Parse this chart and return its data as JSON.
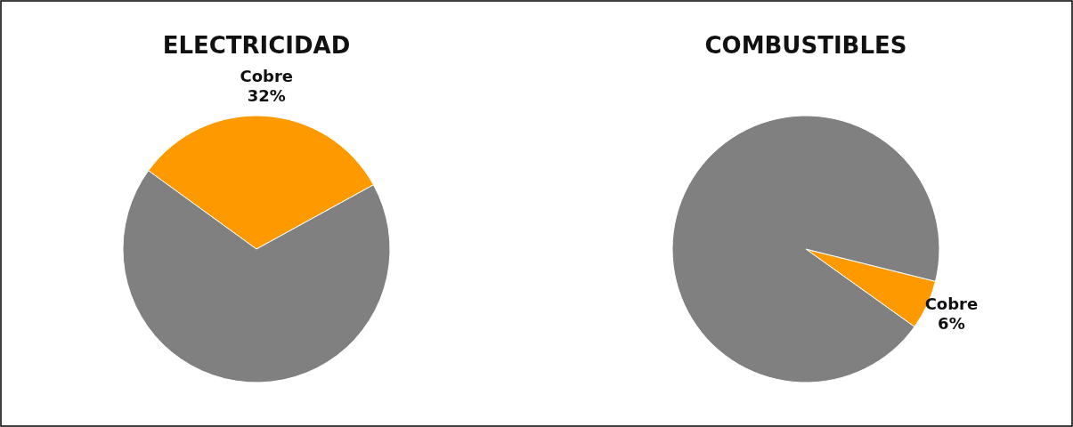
{
  "chart_data": [
    {
      "type": "pie",
      "title": "ELECTRICIDAD",
      "categories": [
        "Cobre",
        null
      ],
      "values": [
        32,
        68
      ],
      "colors": [
        "#ff9900",
        "#808080"
      ],
      "value_labels": [
        "32%",
        null
      ]
    },
    {
      "type": "pie",
      "title": "COMBUSTIBLES",
      "categories": [
        "Cobre",
        null
      ],
      "values": [
        6,
        94
      ],
      "colors": [
        "#ff9900",
        "#808080"
      ],
      "value_labels": [
        "6%",
        null
      ]
    }
  ]
}
